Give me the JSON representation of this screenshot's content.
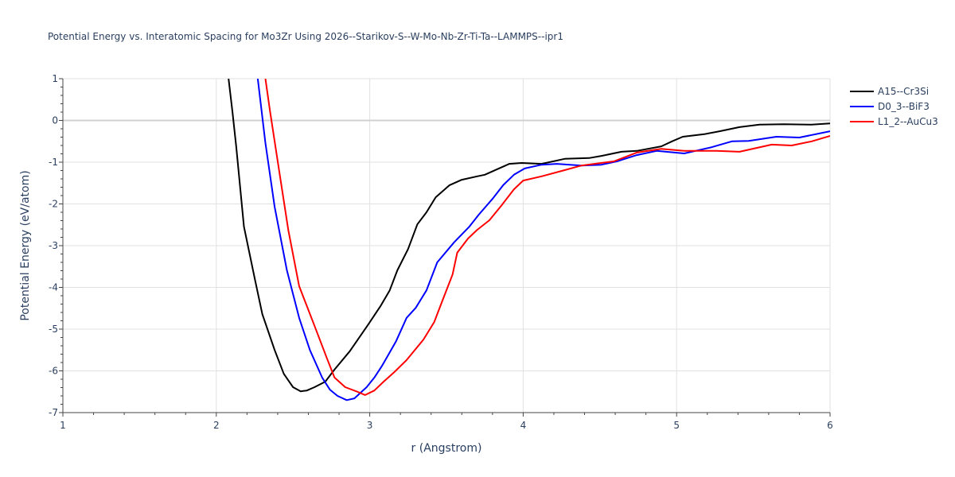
{
  "chart_data": {
    "type": "line",
    "title": "Potential Energy vs. Interatomic Spacing for Mo3Zr Using 2026--Starikov-S--W-Mo-Nb-Zr-Ti-Ta--LAMMPS--ipr1",
    "xlabel": "r (Angstrom)",
    "ylabel": "Potential Energy (eV/atom)",
    "xlim": [
      1,
      6
    ],
    "ylim": [
      -7,
      1
    ],
    "xticks": [
      1,
      2,
      3,
      4,
      5,
      6
    ],
    "yticks": [
      1,
      0,
      -1,
      -2,
      -3,
      -4,
      -5,
      -6,
      -7
    ],
    "grid": true,
    "legend_position": "right",
    "series": [
      {
        "name": "A15--Cr3Si",
        "color": "#000000",
        "x": [
          2.08,
          2.105,
          2.13,
          2.18,
          2.25,
          2.3,
          2.38,
          2.44,
          2.5,
          2.55,
          2.59,
          2.64,
          2.71,
          2.77,
          2.87,
          2.99,
          3.07,
          3.13,
          3.18,
          3.25,
          3.31,
          3.37,
          3.43,
          3.52,
          3.6,
          3.7,
          3.75,
          3.83,
          3.91,
          3.99,
          4.12,
          4.27,
          4.43,
          4.51,
          4.64,
          4.74,
          4.9,
          4.97,
          5.04,
          5.18,
          5.28,
          5.41,
          5.54,
          5.7,
          5.88,
          6.0
        ],
        "y": [
          1.0,
          0.22,
          -0.64,
          -2.54,
          -3.78,
          -4.64,
          -5.5,
          -6.07,
          -6.39,
          -6.49,
          -6.47,
          -6.39,
          -6.26,
          -5.97,
          -5.53,
          -4.89,
          -4.45,
          -4.07,
          -3.59,
          -3.08,
          -2.49,
          -2.2,
          -1.84,
          -1.55,
          -1.42,
          -1.34,
          -1.3,
          -1.17,
          -1.04,
          -1.02,
          -1.04,
          -0.92,
          -0.9,
          -0.85,
          -0.75,
          -0.73,
          -0.62,
          -0.5,
          -0.39,
          -0.33,
          -0.26,
          -0.16,
          -0.1,
          -0.09,
          -0.1,
          -0.07
        ]
      },
      {
        "name": "D0_3--BiF3",
        "color": "#0000ff",
        "x": [
          2.27,
          2.32,
          2.38,
          2.46,
          2.54,
          2.61,
          2.69,
          2.74,
          2.79,
          2.85,
          2.9,
          2.98,
          3.03,
          3.08,
          3.17,
          3.24,
          3.3,
          3.37,
          3.44,
          3.55,
          3.65,
          3.71,
          3.8,
          3.87,
          3.94,
          4.01,
          4.12,
          4.22,
          4.38,
          4.51,
          4.61,
          4.74,
          4.87,
          5.05,
          5.23,
          5.36,
          5.47,
          5.65,
          5.8,
          6.0
        ],
        "y": [
          1.0,
          -0.54,
          -2.07,
          -3.59,
          -4.73,
          -5.5,
          -6.16,
          -6.45,
          -6.6,
          -6.7,
          -6.66,
          -6.39,
          -6.16,
          -5.88,
          -5.3,
          -4.73,
          -4.49,
          -4.07,
          -3.4,
          -2.92,
          -2.54,
          -2.26,
          -1.88,
          -1.55,
          -1.3,
          -1.15,
          -1.06,
          -1.04,
          -1.08,
          -1.06,
          -0.98,
          -0.83,
          -0.73,
          -0.79,
          -0.64,
          -0.5,
          -0.49,
          -0.39,
          -0.41,
          -0.26
        ]
      },
      {
        "name": "L1_2--AuCu3",
        "color": "#ff0000",
        "x": [
          2.32,
          2.35,
          2.41,
          2.47,
          2.54,
          2.64,
          2.72,
          2.77,
          2.84,
          2.92,
          2.97,
          3.03,
          3.09,
          3.16,
          3.24,
          3.35,
          3.42,
          3.48,
          3.54,
          3.57,
          3.64,
          3.7,
          3.78,
          3.86,
          3.94,
          4.0,
          4.12,
          4.27,
          4.38,
          4.59,
          4.74,
          4.9,
          5.05,
          5.26,
          5.41,
          5.62,
          5.75,
          5.88,
          6.0
        ],
        "y": [
          1.0,
          0.22,
          -1.21,
          -2.64,
          -3.97,
          -4.92,
          -5.69,
          -6.16,
          -6.39,
          -6.5,
          -6.58,
          -6.47,
          -6.26,
          -6.03,
          -5.74,
          -5.25,
          -4.83,
          -4.26,
          -3.69,
          -3.17,
          -2.83,
          -2.62,
          -2.39,
          -2.03,
          -1.65,
          -1.44,
          -1.34,
          -1.19,
          -1.08,
          -0.98,
          -0.77,
          -0.68,
          -0.73,
          -0.73,
          -0.75,
          -0.58,
          -0.6,
          -0.5,
          -0.37
        ]
      }
    ]
  }
}
